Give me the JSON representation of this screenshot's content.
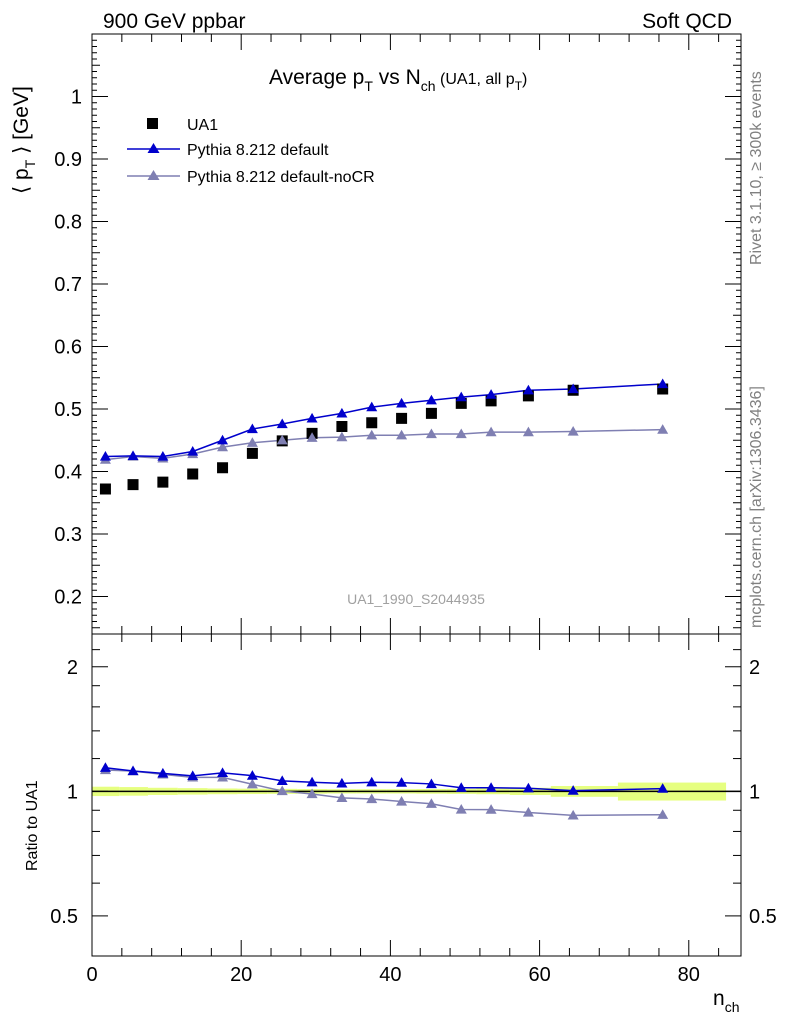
{
  "header": {
    "left": "900 GeV ppbar",
    "right": "Soft QCD"
  },
  "side": {
    "top": "Rivet 3.1.10, ≥ 300k events",
    "bottom": "mcplots.cern.ch [arXiv:1306.3436]"
  },
  "chart_data": [
    {
      "type": "scatter",
      "title": "Average p_T vs N_ch (UA1, all p_T)",
      "title_parts": {
        "main": "Average p",
        "main_sub": "T",
        "vs": " vs N",
        "vs_sub": "ch",
        "paren": " (UA1, all p",
        "paren_sub": "T",
        "paren_end": ")"
      },
      "ylabel": "⟨ p_T ⟩ [GeV]",
      "ylabel_parts": {
        "open": "⟨ p",
        "sub": "T",
        "close": " ⟩ [GeV]"
      },
      "xlabel_parts": {
        "main": "n",
        "sub": "ch"
      },
      "watermark": "UA1_1990_S2044935",
      "xlim": [
        0,
        87
      ],
      "ylim": [
        0.14,
        1.1
      ],
      "xticks": [
        0,
        20,
        40,
        60,
        80
      ],
      "yticks": [
        0.2,
        0.3,
        0.4,
        0.5,
        0.6,
        0.7,
        0.8,
        0.9,
        1.0
      ],
      "ytick_labels": [
        "0.2",
        "0.3",
        "0.4",
        "0.5",
        "0.6",
        "0.7",
        "0.8",
        "0.9",
        "1"
      ],
      "grid": false,
      "legend_position": "top-left",
      "series": [
        {
          "name": "UA1",
          "marker": "square",
          "color": "#000000",
          "line": false,
          "x": [
            1.8,
            5.5,
            9.5,
            13.5,
            17.5,
            21.5,
            25.5,
            29.5,
            33.5,
            37.5,
            41.5,
            45.5,
            49.5,
            53.5,
            58.5,
            64.5,
            76.5
          ],
          "y": [
            0.372,
            0.379,
            0.383,
            0.396,
            0.406,
            0.429,
            0.449,
            0.461,
            0.472,
            0.478,
            0.485,
            0.493,
            0.509,
            0.513,
            0.521,
            0.53,
            0.532
          ]
        },
        {
          "name": "Pythia 8.212 default",
          "marker": "triangle",
          "color": "#0000cc",
          "line": true,
          "x": [
            1.8,
            5.5,
            9.5,
            13.5,
            17.5,
            21.5,
            25.5,
            29.5,
            33.5,
            37.5,
            41.5,
            45.5,
            49.5,
            53.5,
            58.5,
            64.5,
            76.5
          ],
          "y": [
            0.424,
            0.425,
            0.424,
            0.432,
            0.45,
            0.468,
            0.476,
            0.485,
            0.493,
            0.503,
            0.509,
            0.514,
            0.519,
            0.523,
            0.53,
            0.532,
            0.54
          ]
        },
        {
          "name": "Pythia 8.212 default-noCR",
          "marker": "triangle",
          "color": "#7f7fb2",
          "line": true,
          "x": [
            1.8,
            5.5,
            9.5,
            13.5,
            17.5,
            21.5,
            25.5,
            29.5,
            33.5,
            37.5,
            41.5,
            45.5,
            49.5,
            53.5,
            58.5,
            64.5,
            76.5
          ],
          "y": [
            0.419,
            0.424,
            0.421,
            0.428,
            0.439,
            0.446,
            0.45,
            0.454,
            0.455,
            0.458,
            0.458,
            0.46,
            0.46,
            0.463,
            0.463,
            0.464,
            0.467
          ]
        }
      ]
    },
    {
      "type": "line",
      "ylabel": "Ratio to UA1",
      "xlim": [
        0,
        87
      ],
      "ylim": [
        0.4,
        2.4
      ],
      "log_y": true,
      "xticks": [
        0,
        20,
        40,
        60,
        80
      ],
      "xtick_labels": [
        "0",
        "20",
        "40",
        "60",
        "80"
      ],
      "yticks": [
        0.5,
        1,
        2
      ],
      "ytick_labels": [
        "0.5",
        "1",
        "2"
      ],
      "reference_line": 1,
      "band_color": "#e6ff80",
      "series": [
        {
          "name": "Pythia 8.212 default",
          "marker": "triangle",
          "color": "#0000cc",
          "x": [
            1.8,
            5.5,
            9.5,
            13.5,
            17.5,
            21.5,
            25.5,
            29.5,
            33.5,
            37.5,
            41.5,
            45.5,
            49.5,
            53.5,
            58.5,
            64.5,
            76.5
          ],
          "y": [
            1.14,
            1.12,
            1.105,
            1.09,
            1.108,
            1.091,
            1.06,
            1.052,
            1.045,
            1.052,
            1.05,
            1.042,
            1.02,
            1.02,
            1.017,
            1.004,
            1.015
          ]
        },
        {
          "name": "Pythia 8.212 default-noCR",
          "marker": "triangle",
          "color": "#7f7fb2",
          "x": [
            1.8,
            5.5,
            9.5,
            13.5,
            17.5,
            21.5,
            25.5,
            29.5,
            33.5,
            37.5,
            41.5,
            45.5,
            49.5,
            53.5,
            58.5,
            64.5,
            76.5
          ],
          "y": [
            1.126,
            1.119,
            1.099,
            1.081,
            1.081,
            1.04,
            1.002,
            0.985,
            0.964,
            0.958,
            0.945,
            0.933,
            0.904,
            0.903,
            0.889,
            0.875,
            0.878
          ]
        }
      ]
    }
  ]
}
